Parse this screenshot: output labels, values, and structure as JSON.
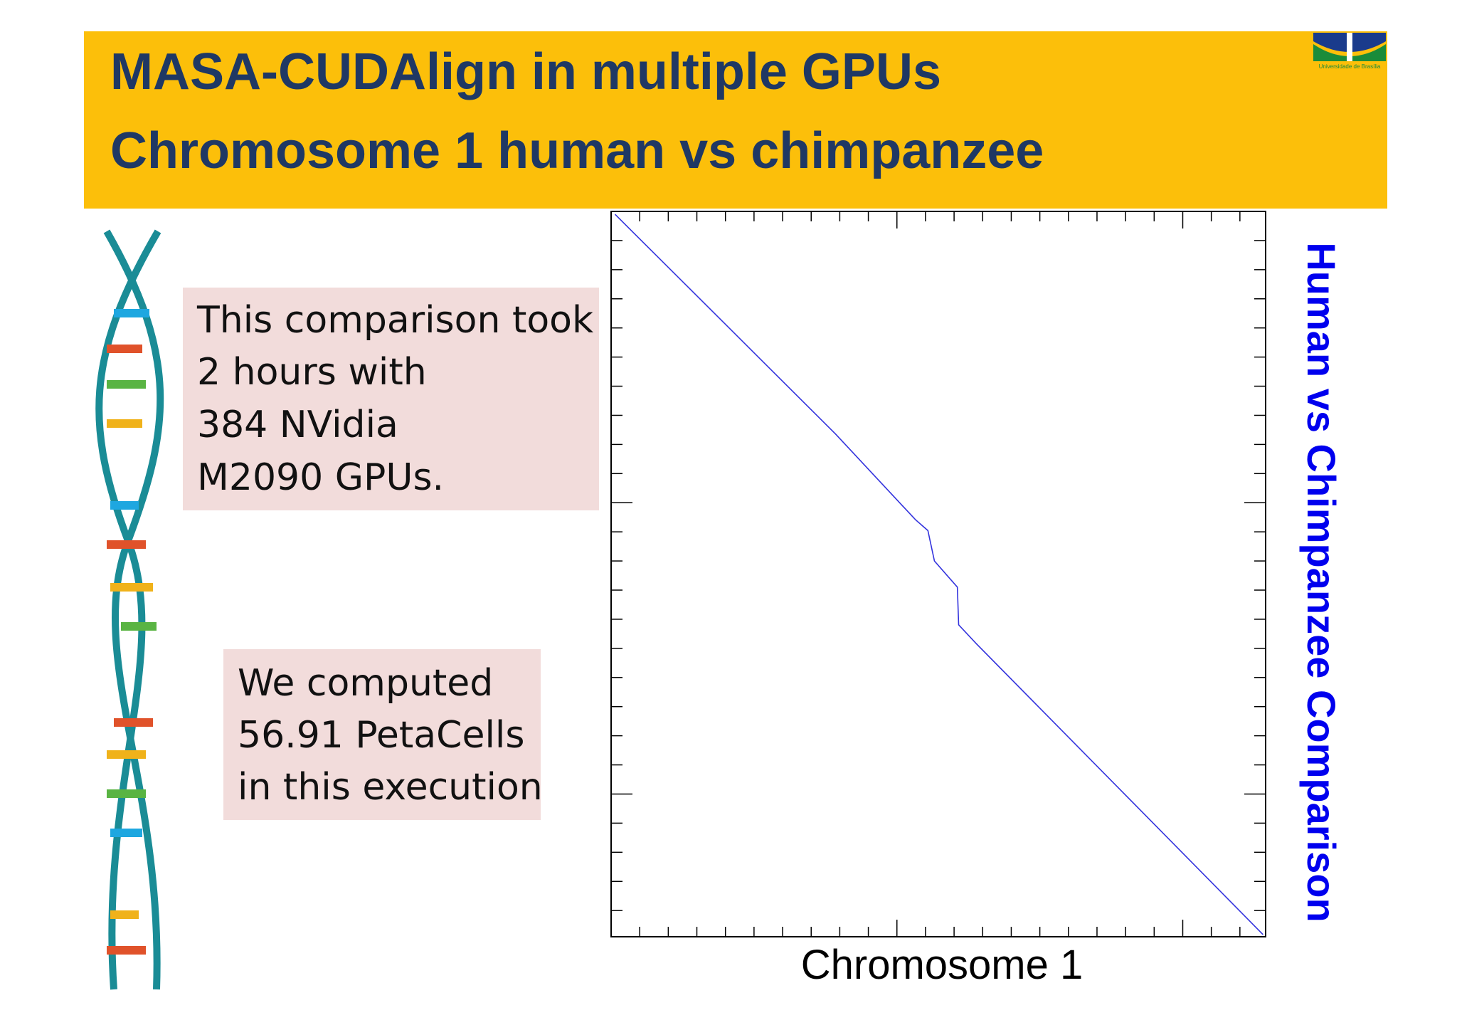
{
  "header": {
    "title_lines": [
      "MASA-CUDAlign in multiple GPUs",
      "Chromosome 1 human vs chimpanzee"
    ],
    "logo_text": "Universidade de Brasília"
  },
  "boxes": [
    {
      "lines": [
        "This comparison took",
        "2 hours with",
        "384 NVidia",
        "M2090 GPUs."
      ]
    },
    {
      "lines": [
        "We computed",
        "56.91 PetaCells",
        "in this execution"
      ]
    }
  ],
  "chart_data": {
    "type": "line",
    "x_label": "Chromosome 1",
    "y_label": "Human vs Chimpanzee Comparison",
    "xlim": [
      0,
      1
    ],
    "ylim": [
      0,
      1
    ],
    "x": [
      0.006,
      0.343,
      0.465,
      0.484,
      0.494,
      0.529,
      0.531,
      0.558,
      0.996
    ],
    "series": [
      {
        "color": "#3333dd",
        "values": [
          0.996,
          0.693,
          0.575,
          0.56,
          0.518,
          0.482,
          0.43,
          0.404,
          0.003
        ]
      }
    ]
  }
}
